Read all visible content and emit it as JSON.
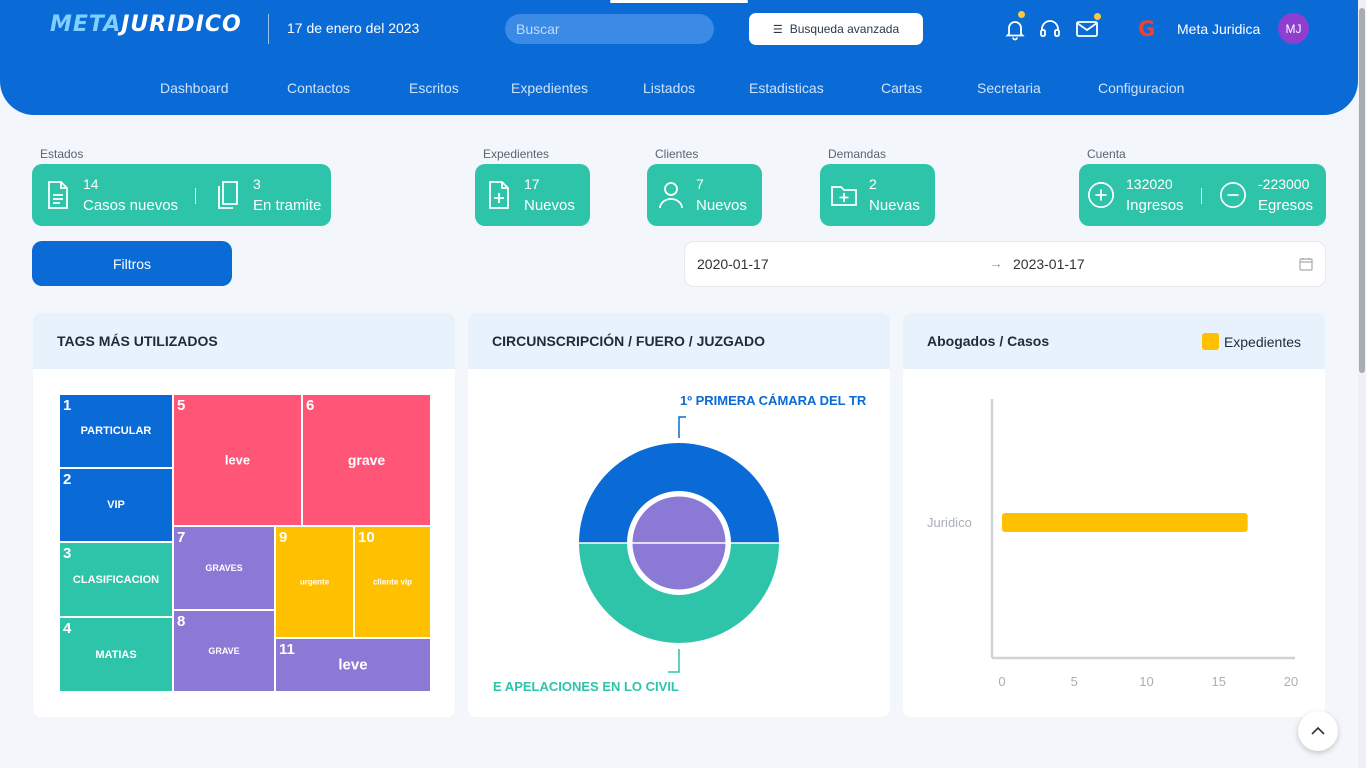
{
  "header": {
    "logo_a": "META",
    "logo_b": "JURIDICO",
    "date": "17 de enero del 2023",
    "search_placeholder": "Buscar",
    "advanced_search_label": "Busqueda avanzada",
    "user_name": "Meta Juridica",
    "avatar_initials": "MJ",
    "google_glyph": "G"
  },
  "nav": {
    "items": [
      "Dashboard",
      "Contactos",
      "Escritos",
      "Expedientes",
      "Listados",
      "Estadisticas",
      "Cartas",
      "Secretaria",
      "Configuracion"
    ]
  },
  "stats": {
    "estados": {
      "label": "Estados",
      "items": [
        {
          "value": "14",
          "label": "Casos nuevos",
          "icon": "document-icon"
        },
        {
          "value": "3",
          "label": "En tramite",
          "icon": "documents-icon"
        }
      ]
    },
    "expedientes": {
      "label": "Expedientes",
      "value": "17",
      "item_label": "Nuevos",
      "icon": "file-plus-icon"
    },
    "clientes": {
      "label": "Clientes",
      "value": "7",
      "item_label": "Nuevos",
      "icon": "user-icon"
    },
    "demandas": {
      "label": "Demandas",
      "value": "2",
      "item_label": "Nuevas",
      "icon": "folder-plus-icon"
    },
    "cuenta": {
      "label": "Cuenta",
      "items": [
        {
          "value": "132020",
          "label": "Ingresos",
          "icon": "plus-circle-icon"
        },
        {
          "value": "-223000",
          "label": "Egresos",
          "icon": "minus-circle-icon"
        }
      ]
    }
  },
  "filters_label": "Filtros",
  "date_range": {
    "start": "2020-01-17",
    "end": "2023-01-17",
    "arrow": "→"
  },
  "panels": {
    "tags_title": "TAGS MÁS UTILIZADOS",
    "circ_title": "CIRCUNSCRIPCIÓN / FUERO / JUZGADO",
    "lawyers_title": "Abogados / Casos"
  },
  "treemap": [
    {
      "n": "1",
      "label": "PARTICULAR",
      "color": "#0a6ad6"
    },
    {
      "n": "2",
      "label": "VIP",
      "color": "#0a6ad6"
    },
    {
      "n": "3",
      "label": "CLASIFICACION",
      "color": "#2ec4a9"
    },
    {
      "n": "4",
      "label": "MATIAS",
      "color": "#2ec4a9"
    },
    {
      "n": "5",
      "label": "leve",
      "color": "#ff5577"
    },
    {
      "n": "6",
      "label": "grave",
      "color": "#ff5577"
    },
    {
      "n": "7",
      "label": "GRAVES",
      "color": "#8b79d6"
    },
    {
      "n": "8",
      "label": "GRAVE",
      "color": "#8b79d6"
    },
    {
      "n": "9",
      "label": "urgente",
      "color": "#ffc000"
    },
    {
      "n": "10",
      "label": "cliente vip",
      "color": "#ffc000"
    },
    {
      "n": "11",
      "label": "leve",
      "color": "#8b79d6"
    }
  ],
  "donut": {
    "top_label": "1º PRIMERA CÁMARA DEL TR",
    "bottom_label": "E APELACIONES EN LO CIVIL",
    "colors": {
      "top": "#0a6ad6",
      "bottom": "#2ec4a9",
      "inner": "#8b79d6"
    }
  },
  "chart_data": {
    "type": "bar",
    "orientation": "horizontal",
    "categories": [
      "Juridico"
    ],
    "series": [
      {
        "name": "Expedientes",
        "values": [
          17
        ],
        "color": "#ffc000"
      }
    ],
    "xlim": [
      0,
      20
    ],
    "xticks": [
      "0",
      "5",
      "10",
      "15",
      "20"
    ],
    "category_label": "Juridico",
    "legend_position": "top-right"
  }
}
